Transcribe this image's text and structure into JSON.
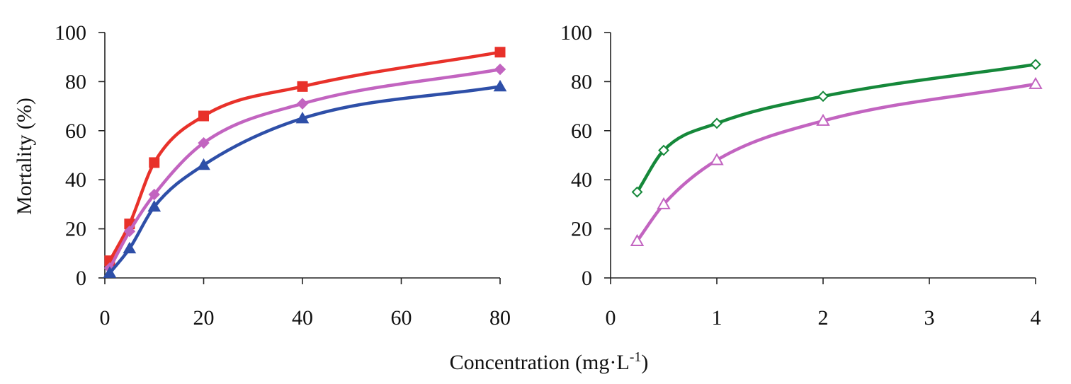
{
  "chart_data": [
    {
      "type": "line",
      "ylabel": "Mortality (%)",
      "ylim": [
        0,
        100
      ],
      "yticks": [
        0,
        20,
        40,
        60,
        80,
        100
      ],
      "xlim": [
        0,
        80
      ],
      "xticks": [
        0,
        20,
        40,
        60,
        80
      ],
      "grid": false,
      "series": [
        {
          "color": "#e8312a",
          "marker": "square",
          "filled": true,
          "points": [
            [
              1,
              7
            ],
            [
              5,
              22
            ],
            [
              10,
              47
            ],
            [
              20,
              66
            ],
            [
              40,
              78
            ],
            [
              80,
              92
            ]
          ]
        },
        {
          "color": "#c264c0",
          "marker": "diamond",
          "filled": true,
          "points": [
            [
              1,
              4
            ],
            [
              5,
              19
            ],
            [
              10,
              34
            ],
            [
              20,
              55
            ],
            [
              40,
              71
            ],
            [
              80,
              85
            ]
          ]
        },
        {
          "color": "#2e4fa8",
          "marker": "triangle",
          "filled": true,
          "points": [
            [
              1,
              2
            ],
            [
              5,
              12
            ],
            [
              10,
              29
            ],
            [
              20,
              46
            ],
            [
              40,
              65
            ],
            [
              80,
              78
            ]
          ]
        }
      ]
    },
    {
      "type": "line",
      "ylim": [
        0,
        100
      ],
      "yticks": [
        0,
        20,
        40,
        60,
        80,
        100
      ],
      "xlim": [
        0,
        4
      ],
      "xticks": [
        0,
        1,
        2,
        3,
        4
      ],
      "grid": false,
      "series": [
        {
          "color": "#15883a",
          "marker": "diamond",
          "filled": false,
          "points": [
            [
              0.25,
              35
            ],
            [
              0.5,
              52
            ],
            [
              1,
              63
            ],
            [
              2,
              74
            ],
            [
              4,
              87
            ]
          ]
        },
        {
          "color": "#c264c0",
          "marker": "triangle",
          "filled": false,
          "points": [
            [
              0.25,
              15
            ],
            [
              0.5,
              30
            ],
            [
              1,
              48
            ],
            [
              2,
              64
            ],
            [
              4,
              79
            ]
          ]
        }
      ]
    }
  ],
  "shared_xlabel": "Concentration (mg·L",
  "shared_xlabel_sup": "-1",
  "shared_xlabel_end": ")"
}
